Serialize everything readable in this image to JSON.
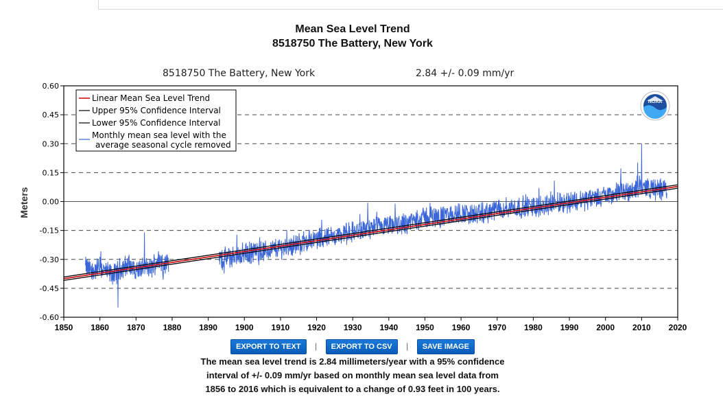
{
  "page": {
    "title_line1": "Mean Sea Level Trend",
    "title_line2": "8518750 The Battery, New York"
  },
  "header": {
    "station": "8518750 The Battery, New York",
    "trend_value": "2.84",
    "trend_pm": "+/-",
    "trend_error": "0.09 mm/yr"
  },
  "buttons": {
    "export_text": "EXPORT TO TEXT",
    "export_csv": "EXPORT TO CSV",
    "save_image": "SAVE IMAGE",
    "separator": "|"
  },
  "summary": {
    "line1": "The mean sea level trend is 2.84 millimeters/year with a 95% confidence",
    "line2": "interval of +/- 0.09 mm/yr based on monthly mean sea level data from",
    "line3": "1856 to 2016 which is equivalent to a change of 0.93 feet in 100 years."
  },
  "logo": {
    "text": "NOAA"
  },
  "colors": {
    "trend": "#cc0000",
    "ci": "#000000",
    "monthly": "#3b66d8",
    "grid": "#444444"
  },
  "chart_data": {
    "type": "line",
    "title": "Mean Sea Level Trend",
    "subtitle": "8518750 The Battery, New York",
    "xlabel": "",
    "ylabel": "Meters",
    "xlim": [
      1850,
      2020
    ],
    "ylim": [
      -0.6,
      0.6
    ],
    "x_ticks": [
      1850,
      1860,
      1870,
      1880,
      1890,
      1900,
      1910,
      1920,
      1930,
      1940,
      1950,
      1960,
      1970,
      1980,
      1990,
      2000,
      2010,
      2020
    ],
    "y_ticks": [
      0.6,
      0.45,
      0.3,
      0.15,
      0.0,
      -0.15,
      -0.3,
      -0.45,
      -0.6
    ],
    "y_tick_labels": [
      "0.60",
      "0.45",
      "0.30",
      "0.15",
      "0.00",
      "-0.15",
      "-0.30",
      "-0.45",
      "-0.60"
    ],
    "grid": "horizontal dashed",
    "legend_position": "top-left",
    "legend": [
      "Linear Mean Sea Level Trend",
      "Upper 95% Confidence Interval",
      "Lower 95% Confidence Interval",
      "Monthly mean sea level with the",
      "average seasonal cycle removed"
    ],
    "trend": {
      "slope_mm_per_yr": 2.84,
      "ci_mm_per_yr": 0.09,
      "start": {
        "year": 1850,
        "value": -0.4
      },
      "end": {
        "year": 2020,
        "value": 0.078
      }
    },
    "monthly_series": {
      "name": "Monthly mean sea level with the average seasonal cycle removed",
      "start_year": 1856,
      "end_year": 2016,
      "gaps": [
        [
          1879,
          1893
        ]
      ],
      "annual_values": [
        {
          "year": 1856,
          "value": -0.34
        },
        {
          "year": 1858,
          "value": -0.36
        },
        {
          "year": 1860,
          "value": -0.34
        },
        {
          "year": 1862,
          "value": -0.37
        },
        {
          "year": 1864,
          "value": -0.38
        },
        {
          "year": 1866,
          "value": -0.34
        },
        {
          "year": 1868,
          "value": -0.33
        },
        {
          "year": 1870,
          "value": -0.36
        },
        {
          "year": 1872,
          "value": -0.34
        },
        {
          "year": 1874,
          "value": -0.35
        },
        {
          "year": 1876,
          "value": -0.3
        },
        {
          "year": 1878,
          "value": -0.32
        },
        {
          "year": 1893,
          "value": -0.3
        },
        {
          "year": 1896,
          "value": -0.29
        },
        {
          "year": 1900,
          "value": -0.27
        },
        {
          "year": 1905,
          "value": -0.26
        },
        {
          "year": 1910,
          "value": -0.24
        },
        {
          "year": 1915,
          "value": -0.22
        },
        {
          "year": 1920,
          "value": -0.19
        },
        {
          "year": 1925,
          "value": -0.18
        },
        {
          "year": 1930,
          "value": -0.16
        },
        {
          "year": 1935,
          "value": -0.14
        },
        {
          "year": 1940,
          "value": -0.13
        },
        {
          "year": 1945,
          "value": -0.11
        },
        {
          "year": 1950,
          "value": -0.08
        },
        {
          "year": 1955,
          "value": -0.08
        },
        {
          "year": 1960,
          "value": -0.06
        },
        {
          "year": 1965,
          "value": -0.07
        },
        {
          "year": 1970,
          "value": -0.04
        },
        {
          "year": 1975,
          "value": -0.03
        },
        {
          "year": 1980,
          "value": -0.03
        },
        {
          "year": 1985,
          "value": -0.01
        },
        {
          "year": 1990,
          "value": 0.0
        },
        {
          "year": 1995,
          "value": 0.01
        },
        {
          "year": 2000,
          "value": 0.03
        },
        {
          "year": 2005,
          "value": 0.05
        },
        {
          "year": 2010,
          "value": 0.08
        },
        {
          "year": 2012,
          "value": 0.07
        },
        {
          "year": 2014,
          "value": 0.06
        },
        {
          "year": 2016,
          "value": 0.07
        }
      ],
      "noise_amplitude_m": 0.05,
      "max_value": 0.3,
      "max_year": 2010,
      "min_value": -0.55,
      "min_year": 1865
    }
  }
}
